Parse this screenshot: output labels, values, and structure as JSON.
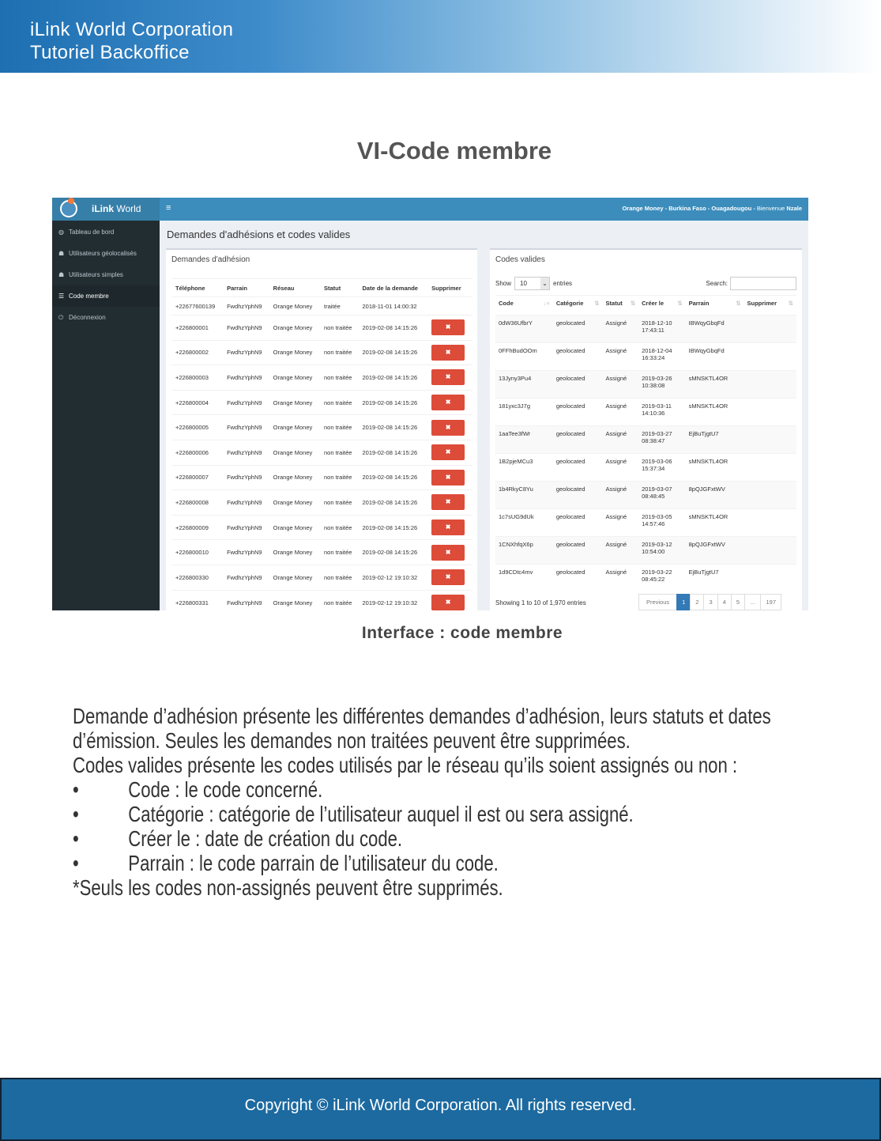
{
  "header": {
    "line1": "iLink World Corporation",
    "line2": "Tutoriel Backoffice"
  },
  "doc_title": "VI-Code membre",
  "screenshot": {
    "brand_bold": "iLink",
    "brand_rest": " World",
    "topbar_info_bold": "Orange Money - Burkina Faso - Ouagadougou -",
    "topbar_welcome": " Bienvenue ",
    "topbar_user": "Nzale",
    "sidebar": [
      {
        "icon": "dashboard-icon",
        "glyph": "◍",
        "label": "Tableau de bord"
      },
      {
        "icon": "users-icon",
        "glyph": "☗",
        "label": "Utilisateurs géolocalisés"
      },
      {
        "icon": "users-icon",
        "glyph": "☗",
        "label": "Utilisateurs simples"
      },
      {
        "icon": "list-icon",
        "glyph": "☰",
        "label": "Code membre",
        "active": true
      },
      {
        "icon": "power-icon",
        "glyph": "⏻",
        "label": "Déconnexion"
      }
    ],
    "page_title": "Demandes d'adhésions et codes valides",
    "left_box": {
      "title": "Demandes d'adhésion",
      "columns": [
        "Téléphone",
        "Parrain",
        "Réseau",
        "Statut",
        "Date de la demande",
        "Supprimer"
      ],
      "delete_glyph": "✖",
      "rows": [
        [
          "+22677600139",
          "FwdhzYphN9",
          "Orange Money",
          "traitée",
          "2018-11-01 14:00:32",
          false
        ],
        [
          "+226800001",
          "FwdhzYphN9",
          "Orange Money",
          "non traitée",
          "2019-02-08 14:15:26",
          true
        ],
        [
          "+226800002",
          "FwdhzYphN9",
          "Orange Money",
          "non traitée",
          "2019-02-08 14:15:26",
          true
        ],
        [
          "+226800003",
          "FwdhzYphN9",
          "Orange Money",
          "non traitée",
          "2019-02-08 14:15:26",
          true
        ],
        [
          "+226800004",
          "FwdhzYphN9",
          "Orange Money",
          "non traitée",
          "2019-02-08 14:15:26",
          true
        ],
        [
          "+226800005",
          "FwdhzYphN9",
          "Orange Money",
          "non traitée",
          "2019-02-08 14:15:26",
          true
        ],
        [
          "+226800006",
          "FwdhzYphN9",
          "Orange Money",
          "non traitée",
          "2019-02-08 14:15:26",
          true
        ],
        [
          "+226800007",
          "FwdhzYphN9",
          "Orange Money",
          "non traitée",
          "2019-02-08 14:15:26",
          true
        ],
        [
          "+226800008",
          "FwdhzYphN9",
          "Orange Money",
          "non traitée",
          "2019-02-08 14:15:26",
          true
        ],
        [
          "+226800009",
          "FwdhzYphN9",
          "Orange Money",
          "non traitée",
          "2019-02-08 14:15:26",
          true
        ],
        [
          "+226800010",
          "FwdhzYphN9",
          "Orange Money",
          "non traitée",
          "2019-02-08 14:15:26",
          true
        ],
        [
          "+226800330",
          "FwdhzYphN9",
          "Orange Money",
          "non traitée",
          "2019-02-12 19:10:32",
          true
        ],
        [
          "+226800331",
          "FwdhzYphN9",
          "Orange Money",
          "non traitée",
          "2019-02-12 19:10:32",
          true
        ]
      ]
    },
    "right_box": {
      "title": "Codes valides",
      "show_label": "Show",
      "show_value": "10",
      "entries_label": "entries",
      "search_label": "Search:",
      "search_value": "",
      "columns": [
        "Code",
        "Catégorie",
        "Statut",
        "Créer le",
        "Parrain",
        "Supprimer"
      ],
      "rows": [
        [
          "0dW36UfbrY",
          "geolocated",
          "Assigné",
          "2018-12-10",
          "17:43:11",
          "IBWqyGbqFd"
        ],
        [
          "0FFhBudOOm",
          "geolocated",
          "Assigné",
          "2018-12-04",
          "16:33:24",
          "IBWqyGbqFd"
        ],
        [
          "13Jyny3Pu4",
          "geolocated",
          "Assigné",
          "2019-03-26",
          "10:38:08",
          "sMNSKTL4OR"
        ],
        [
          "181yxc3J7g",
          "geolocated",
          "Assigné",
          "2019-03-11",
          "14:10:36",
          "sMNSKTL4OR"
        ],
        [
          "1aaTee3fWr",
          "geolocated",
          "Assigné",
          "2019-03-27",
          "08:38:47",
          "EjBuTjgtU7"
        ],
        [
          "1B2pjeMCu3",
          "geolocated",
          "Assigné",
          "2019-03-06",
          "15:37:34",
          "sMNSKTL4OR"
        ],
        [
          "1b4RkyC8Yu",
          "geolocated",
          "Assigné",
          "2019-03-07",
          "08:48:45",
          "8pQJGFxtWV"
        ],
        [
          "1c7sUG9dUk",
          "geolocated",
          "Assigné",
          "2019-03-05",
          "14:57:46",
          "sMNSKTL4OR"
        ],
        [
          "1CNXhfqX6p",
          "geolocated",
          "Assigné",
          "2019-03-12",
          "10:54:00",
          "8pQJGFxtWV"
        ],
        [
          "1d9CDtc4mv",
          "geolocated",
          "Assigné",
          "2019-03-22",
          "08:45:22",
          "EjBuTjgtU7"
        ]
      ],
      "info": "Showing 1 to 10 of 1,970 entries",
      "pagination": [
        "Previous",
        "1",
        "2",
        "3",
        "4",
        "5",
        "…",
        "197"
      ],
      "current_page": "1"
    }
  },
  "caption": "Interface : code membre",
  "body": {
    "p1": "Demande d’adhésion présente les différentes demandes d’adhésion, leurs statuts et dates",
    "p2": "d’émission. Seules les demandes non traitées peuvent être supprimées.",
    "p3": "Codes valides présente les codes utilisés par le réseau qu’ils soient assignés ou non :",
    "bullet": "•",
    "bullets": [
      "Code : le code concerné.",
      "Catégorie : catégorie de l’utilisateur auquel il est ou sera assigné.",
      "Créer le : date de création du code.",
      "Parrain : le code parrain de l’utilisateur du code."
    ],
    "note": "*Seuls les codes non-assignés peuvent être supprimés."
  },
  "footer": "Copyright © iLink World Corporation. All rights reserved."
}
